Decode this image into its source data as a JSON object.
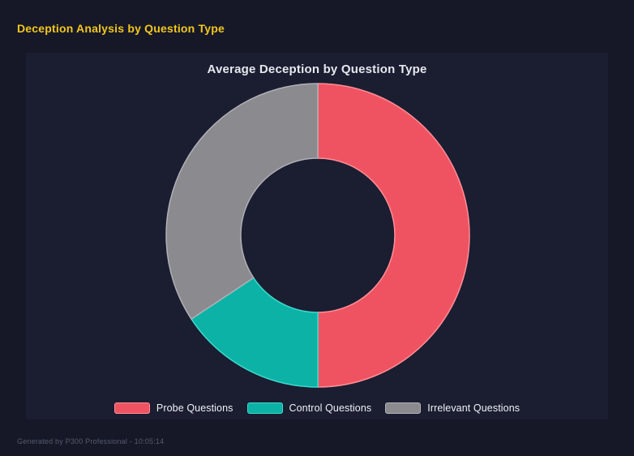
{
  "page": {
    "title": "Deception Analysis by Question Type",
    "footer": "Generated by P300 Professional - 10:05:14"
  },
  "theme": {
    "background": "#161828",
    "panel_background": "#1b1d31",
    "heading_color": "#f2c71d",
    "chart_title_color": "#e6e8ee",
    "legend_text_color": "#f0f2f6",
    "footer_text_color": "#545a6d"
  },
  "chart_data": {
    "type": "pie",
    "variant": "donut",
    "title": "Average Deception by Question Type",
    "labels": [
      "Probe Questions",
      "Control Questions",
      "Irrelevant Questions"
    ],
    "values": [
      50,
      15.7,
      34.3
    ],
    "unit": "percent-estimated-from-arc-angles",
    "colors": [
      "#ef5361",
      "#0cb2a6",
      "#8a8a8f"
    ],
    "border_colors": [
      "#ff8e96",
      "#3cd9cc",
      "#b0b0b6"
    ],
    "legend_position": "bottom",
    "cutout_ratio": 0.51,
    "start_angle_deg": 0,
    "clockwise": true,
    "data_labels_visible": false
  }
}
